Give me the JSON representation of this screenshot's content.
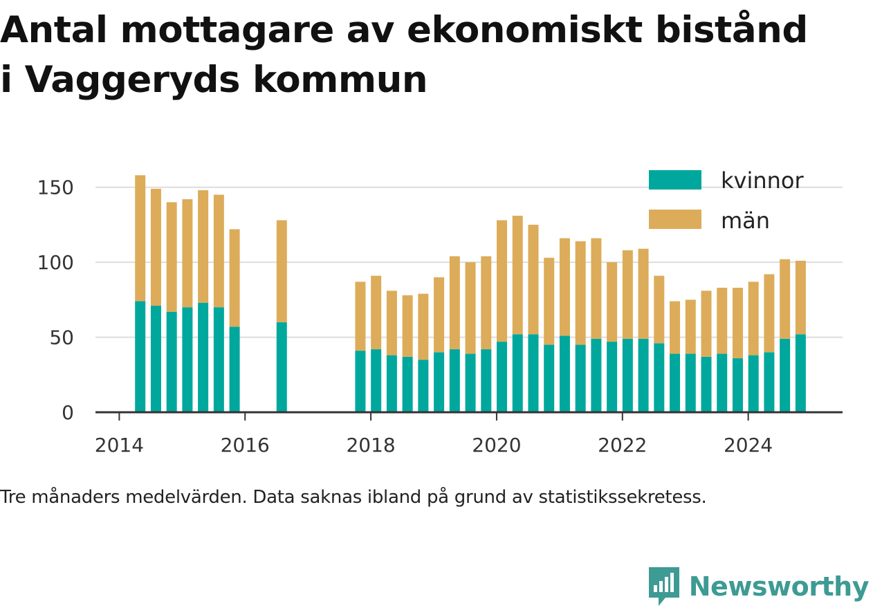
{
  "title_line1": "Antal mottagare av ekonomiskt bistånd",
  "title_line2": "i Vaggeryds kommun",
  "note": "Tre månaders medelvärden. Data saknas ibland på grund av statistikssekretess.",
  "brand": "Newsworthy",
  "colors": {
    "kvinnor": "#00a79d",
    "man": "#dcac5a",
    "grid": "#dddddd",
    "axis": "#333333",
    "brand": "#3d9b94"
  },
  "chart_data": {
    "type": "bar",
    "stacked": true,
    "x_axis_type": "date",
    "xlim": [
      "2013-08-15",
      "2025-07-01"
    ],
    "ylim": [
      0,
      160
    ],
    "x_ticks": [
      "2014",
      "2016",
      "2018",
      "2020",
      "2022",
      "2024"
    ],
    "y_ticks": [
      0,
      50,
      100,
      150
    ],
    "grid": "horizontal",
    "legend_position": "top-right",
    "x": [
      "2014-05",
      "2014-08",
      "2014-11",
      "2015-02",
      "2015-05",
      "2015-08",
      "2015-11",
      "2016-08",
      "2017-11",
      "2018-02",
      "2018-05",
      "2018-08",
      "2018-11",
      "2019-02",
      "2019-05",
      "2019-08",
      "2019-11",
      "2020-02",
      "2020-05",
      "2020-08",
      "2020-11",
      "2021-02",
      "2021-05",
      "2021-08",
      "2021-11",
      "2022-02",
      "2022-05",
      "2022-08",
      "2022-11",
      "2023-02",
      "2023-05",
      "2023-08",
      "2023-11",
      "2024-02",
      "2024-05",
      "2024-08",
      "2024-11"
    ],
    "series": [
      {
        "name": "kvinnor",
        "values": [
          74,
          71,
          67,
          70,
          73,
          70,
          57,
          60,
          41,
          42,
          38,
          37,
          35,
          40,
          42,
          39,
          42,
          47,
          52,
          52,
          45,
          51,
          45,
          49,
          47,
          49,
          49,
          46,
          39,
          39,
          37,
          39,
          36,
          38,
          40,
          49,
          52
        ]
      },
      {
        "name": "män",
        "values": [
          84,
          78,
          73,
          72,
          75,
          75,
          65,
          68,
          46,
          49,
          43,
          41,
          44,
          50,
          62,
          61,
          62,
          81,
          79,
          73,
          58,
          65,
          69,
          67,
          53,
          59,
          60,
          45,
          35,
          36,
          44,
          44,
          47,
          49,
          52,
          53,
          49
        ]
      }
    ]
  }
}
